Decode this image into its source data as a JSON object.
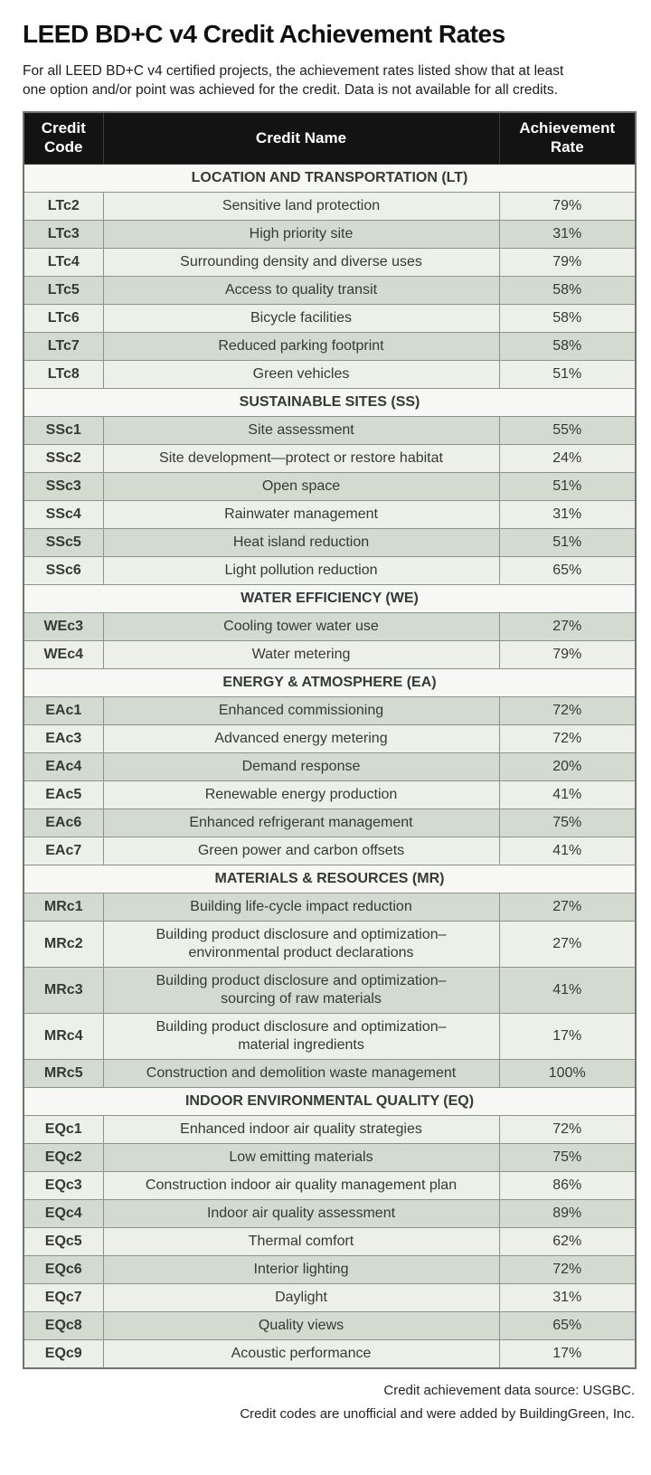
{
  "chart_data": {
    "type": "table",
    "title": "LEED BD+C v4 Credit Achievement Rates",
    "subtitle": "For all LEED BD+C v4 certified projects, the achievement rates listed show that at least\none option and/or point was achieved for the credit. Data is not available for all credits.",
    "columns": [
      "Credit Code",
      "Credit Name",
      "Achievement Rate"
    ],
    "sections": [
      {
        "heading": "LOCATION AND TRANSPORTATION (LT)",
        "rows": [
          [
            "LTc2",
            "Sensitive land protection",
            "79%"
          ],
          [
            "LTc3",
            "High priority site",
            "31%"
          ],
          [
            "LTc4",
            "Surrounding density and diverse uses",
            "79%"
          ],
          [
            "LTc5",
            "Access to quality transit",
            "58%"
          ],
          [
            "LTc6",
            "Bicycle facilities",
            "58%"
          ],
          [
            "LTc7",
            "Reduced parking footprint",
            "58%"
          ],
          [
            "LTc8",
            "Green vehicles",
            "51%"
          ]
        ]
      },
      {
        "heading": "SUSTAINABLE SITES (SS)",
        "rows": [
          [
            "SSc1",
            "Site assessment",
            "55%"
          ],
          [
            "SSc2",
            "Site development—protect or restore habitat",
            "24%"
          ],
          [
            "SSc3",
            "Open space",
            "51%"
          ],
          [
            "SSc4",
            "Rainwater management",
            "31%"
          ],
          [
            "SSc5",
            "Heat island reduction",
            "51%"
          ],
          [
            "SSc6",
            "Light pollution reduction",
            "65%"
          ]
        ]
      },
      {
        "heading": "WATER EFFICIENCY (WE)",
        "rows": [
          [
            "WEc3",
            "Cooling tower water use",
            "27%"
          ],
          [
            "WEc4",
            "Water metering",
            "79%"
          ]
        ]
      },
      {
        "heading": "ENERGY & ATMOSPHERE (EA)",
        "rows": [
          [
            "EAc1",
            "Enhanced commissioning",
            "72%"
          ],
          [
            "EAc3",
            "Advanced energy metering",
            "72%"
          ],
          [
            "EAc4",
            "Demand response",
            "20%"
          ],
          [
            "EAc5",
            "Renewable energy production",
            "41%"
          ],
          [
            "EAc6",
            "Enhanced refrigerant management",
            "75%"
          ],
          [
            "EAc7",
            "Green power and carbon offsets",
            "41%"
          ]
        ]
      },
      {
        "heading": "MATERIALS & RESOURCES (MR)",
        "rows": [
          [
            "MRc1",
            "Building life-cycle impact reduction",
            "27%"
          ],
          [
            "MRc2",
            "Building product disclosure and optimization–\nenvironmental product declarations",
            "27%"
          ],
          [
            "MRc3",
            "Building product disclosure and optimization–\nsourcing of raw materials",
            "41%"
          ],
          [
            "MRc4",
            "Building product disclosure and optimization–\nmaterial ingredients",
            "17%"
          ],
          [
            "MRc5",
            "Construction and demolition waste management",
            "100%"
          ]
        ]
      },
      {
        "heading": "INDOOR ENVIRONMENTAL QUALITY (EQ)",
        "rows": [
          [
            "EQc1",
            "Enhanced indoor air quality strategies",
            "72%"
          ],
          [
            "EQc2",
            "Low emitting materials",
            "75%"
          ],
          [
            "EQc3",
            "Construction indoor air quality management plan",
            "86%"
          ],
          [
            "EQc4",
            "Indoor air quality assessment",
            "89%"
          ],
          [
            "EQc5",
            "Thermal comfort",
            "62%"
          ],
          [
            "EQc6",
            "Interior lighting",
            "72%"
          ],
          [
            "EQc7",
            "Daylight",
            "31%"
          ],
          [
            "EQc8",
            "Quality views",
            "65%"
          ],
          [
            "EQc9",
            "Acoustic performance",
            "17%"
          ]
        ]
      }
    ],
    "footnotes": [
      "Credit achievement data source: USGBC.",
      "Credit codes are unofficial and were added by BuildingGreen, Inc."
    ]
  },
  "colors": {
    "header_bg": "#131313",
    "header_text": "#ffffff",
    "section_bg": "#f7f8f5",
    "row_light": "#edefe9",
    "row_dark": "#d3dbd0",
    "border": "#8d938c",
    "outer_border": "#6e736e"
  }
}
